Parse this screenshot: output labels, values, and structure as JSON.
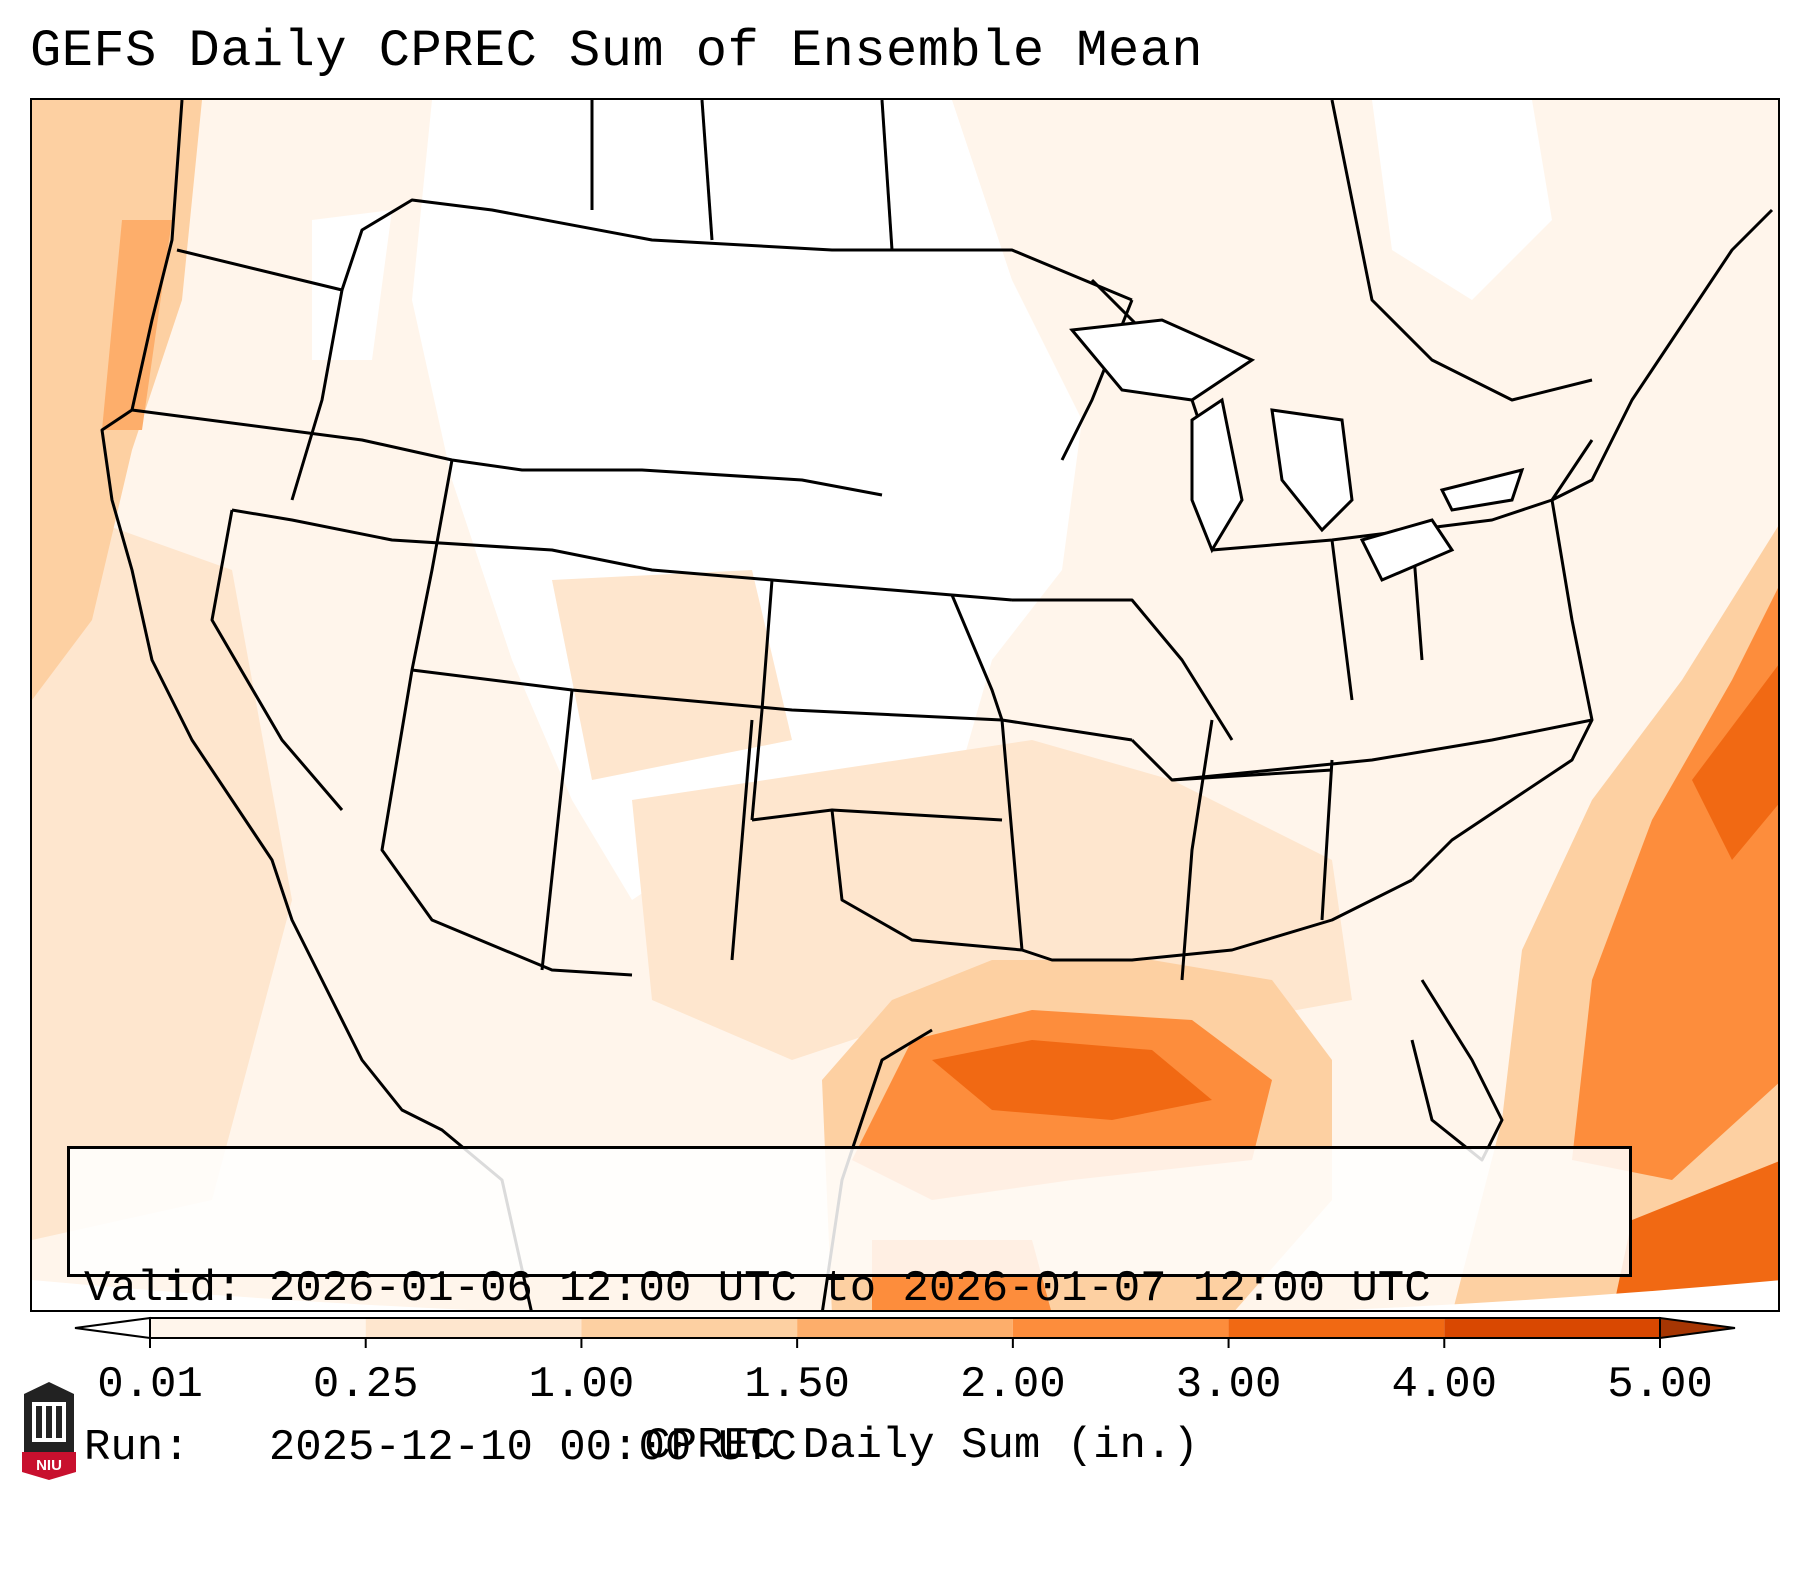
{
  "title": "GEFS Daily CPREC Sum of Ensemble Mean",
  "info": {
    "valid_line": "Valid: 2026-01-06 12:00 UTC to 2026-01-07 12:00 UTC",
    "run_line": "Run:   2025-12-10 00:00 UTC"
  },
  "colorbar": {
    "label": "CPREC Daily Sum (in.)",
    "ticks": [
      "0.01",
      "0.25",
      "1.00",
      "1.50",
      "2.00",
      "3.00",
      "4.00",
      "5.00"
    ],
    "colors": [
      "#fff5eb",
      "#fee6ce",
      "#fdd0a2",
      "#fdae6b",
      "#fd8d3c",
      "#f16913",
      "#d94801"
    ],
    "under_color": "#ffffff",
    "over_color": "#a63603"
  },
  "logo": {
    "text": "NIU",
    "color": "#c8102e"
  },
  "colors": {
    "border": "#000000",
    "shading_light": "#fff5eb",
    "shading_mid": "#fee6ce",
    "shading_heavy": "#fdd0a2",
    "shading_max": "#f16913"
  }
}
